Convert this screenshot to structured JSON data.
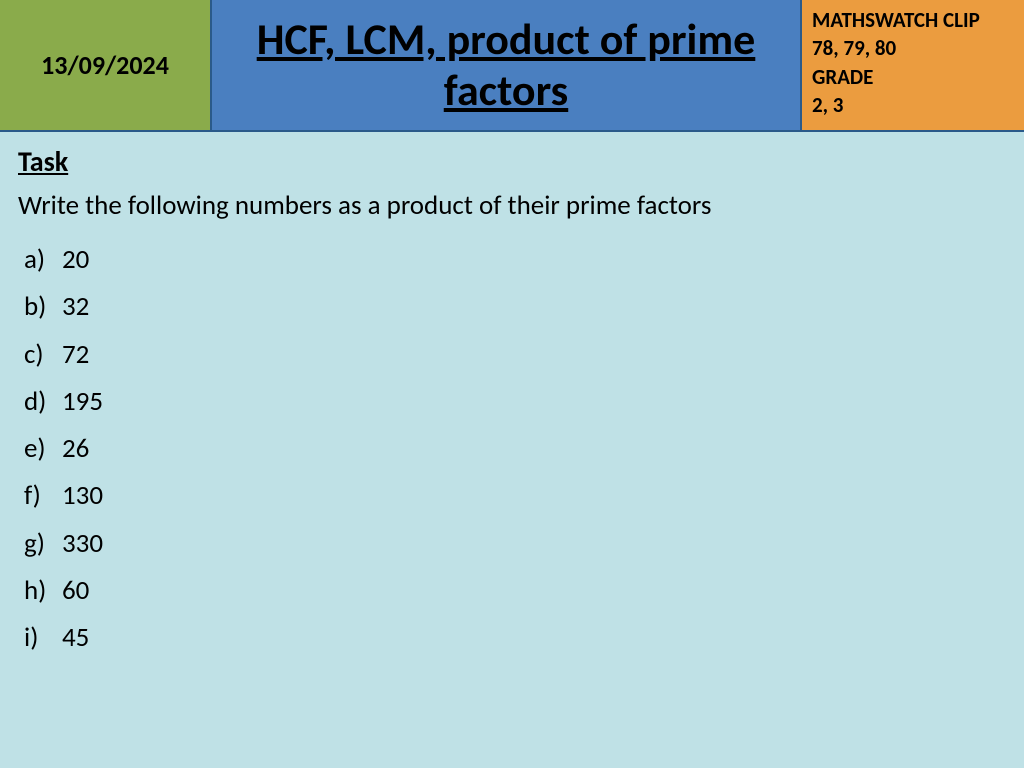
{
  "header": {
    "date": "13/09/2024",
    "title": "HCF, LCM, product of prime factors",
    "meta_line1": "MATHSWATCH CLIP",
    "meta_line2": "78, 79, 80",
    "meta_line3": "GRADE",
    "meta_line4": "2, 3",
    "date_bg": "#8aab4b",
    "title_bg": "#4a7fc0",
    "meta_bg": "#eb9c3f"
  },
  "body": {
    "bg": "#bfe1e6",
    "task_label": "Task",
    "instruction": "Write the following numbers as a product of their prime factors",
    "items": [
      {
        "marker": "a)",
        "value": "20"
      },
      {
        "marker": "b)",
        "value": "32"
      },
      {
        "marker": "c)",
        "value": "72"
      },
      {
        "marker": "d)",
        "value": "195"
      },
      {
        "marker": "e)",
        "value": "26"
      },
      {
        "marker": "f)",
        "value": "130"
      },
      {
        "marker": "g)",
        "value": "330"
      },
      {
        "marker": "h)",
        "value": "60"
      },
      {
        "marker": "i)",
        "value": "45"
      }
    ]
  }
}
